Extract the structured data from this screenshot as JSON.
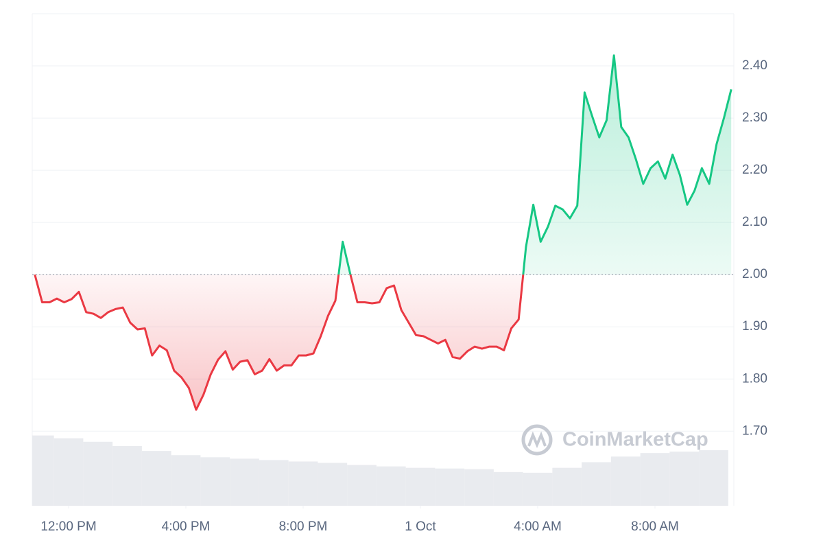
{
  "chart_data": {
    "type": "line",
    "baseline": 2.0,
    "colors": {
      "up": "#16c784",
      "down": "#ea3943",
      "volume": "#e9ebef"
    },
    "watermark": "CoinMarketCap",
    "xlim": [
      10.76,
      34.69
    ],
    "xticks": [
      {
        "value": 12,
        "label": "12:00 PM"
      },
      {
        "value": 16,
        "label": "4:00 PM"
      },
      {
        "value": 20,
        "label": "8:00 PM"
      },
      {
        "value": 24,
        "label": "1 Oct"
      },
      {
        "value": 28,
        "label": "4:00 AM"
      },
      {
        "value": 32,
        "label": "8:00 AM"
      }
    ],
    "ylim": [
      1.557,
      2.5
    ],
    "yticks": [
      {
        "value": 1.7,
        "label": "1.70"
      },
      {
        "value": 1.8,
        "label": "1.80"
      },
      {
        "value": 1.9,
        "label": "1.90"
      },
      {
        "value": 2.0,
        "label": "2.00"
      },
      {
        "value": 2.1,
        "label": "2.10"
      },
      {
        "value": 2.2,
        "label": "2.20"
      },
      {
        "value": 2.3,
        "label": "2.30"
      },
      {
        "value": 2.4,
        "label": "2.40"
      }
    ],
    "grid": true,
    "x": [
      10.85,
      11.1,
      11.35,
      11.6,
      11.85,
      12.1,
      12.35,
      12.6,
      12.85,
      13.1,
      13.35,
      13.6,
      13.85,
      14.1,
      14.35,
      14.6,
      14.85,
      15.1,
      15.35,
      15.6,
      15.85,
      16.1,
      16.35,
      16.6,
      16.85,
      17.1,
      17.35,
      17.6,
      17.85,
      18.1,
      18.35,
      18.6,
      18.85,
      19.1,
      19.35,
      19.6,
      19.85,
      20.1,
      20.35,
      20.6,
      20.85,
      21.1,
      21.35,
      21.6,
      21.85,
      22.1,
      22.35,
      22.6,
      22.85,
      23.1,
      23.35,
      23.6,
      23.85,
      24.1,
      24.35,
      24.6,
      24.85,
      25.1,
      25.35,
      25.6,
      25.85,
      26.1,
      26.35,
      26.6,
      26.85,
      27.1,
      27.35,
      27.6,
      27.85,
      28.1,
      28.35,
      28.6,
      28.85,
      29.1,
      29.35,
      29.6,
      29.85,
      30.1,
      30.35,
      30.6,
      30.85,
      31.1,
      31.35,
      31.6,
      31.85,
      32.1,
      32.35,
      32.6,
      32.85,
      33.1,
      33.35,
      33.6,
      33.85,
      34.1,
      34.35,
      34.6
    ],
    "values": [
      2.0,
      1.947,
      1.947,
      1.954,
      1.947,
      1.953,
      1.967,
      1.928,
      1.925,
      1.917,
      1.928,
      1.934,
      1.937,
      1.908,
      1.895,
      1.897,
      1.845,
      1.864,
      1.855,
      1.816,
      1.803,
      1.783,
      1.741,
      1.77,
      1.809,
      1.837,
      1.853,
      1.818,
      1.833,
      1.836,
      1.809,
      1.816,
      1.838,
      1.816,
      1.826,
      1.826,
      1.845,
      1.845,
      1.849,
      1.882,
      1.921,
      1.95,
      2.063,
      2.003,
      1.947,
      1.947,
      1.945,
      1.947,
      1.974,
      1.979,
      1.932,
      1.908,
      1.884,
      1.882,
      1.875,
      1.868,
      1.875,
      1.842,
      1.839,
      1.853,
      1.862,
      1.858,
      1.862,
      1.862,
      1.855,
      1.897,
      1.914,
      2.053,
      2.134,
      2.063,
      2.092,
      2.132,
      2.125,
      2.108,
      2.132,
      2.349,
      2.305,
      2.263,
      2.296,
      2.42,
      2.283,
      2.263,
      2.221,
      2.174,
      2.204,
      2.217,
      2.184,
      2.23,
      2.191,
      2.134,
      2.161,
      2.204,
      2.174,
      2.25,
      2.3,
      2.355
    ],
    "volume": {
      "y2lim": [
        0,
        700
      ],
      "x": [
        11,
        12,
        13,
        14,
        15,
        16,
        17,
        18,
        19,
        20,
        21,
        22,
        23,
        24,
        25,
        26,
        27,
        28,
        29,
        30,
        31,
        32,
        33,
        34
      ],
      "values": [
        100,
        96,
        91,
        85,
        78,
        72,
        69,
        67,
        65,
        63,
        61,
        58,
        56,
        54,
        53,
        52,
        48,
        47,
        54,
        62,
        70,
        75,
        77,
        79
      ]
    }
  }
}
